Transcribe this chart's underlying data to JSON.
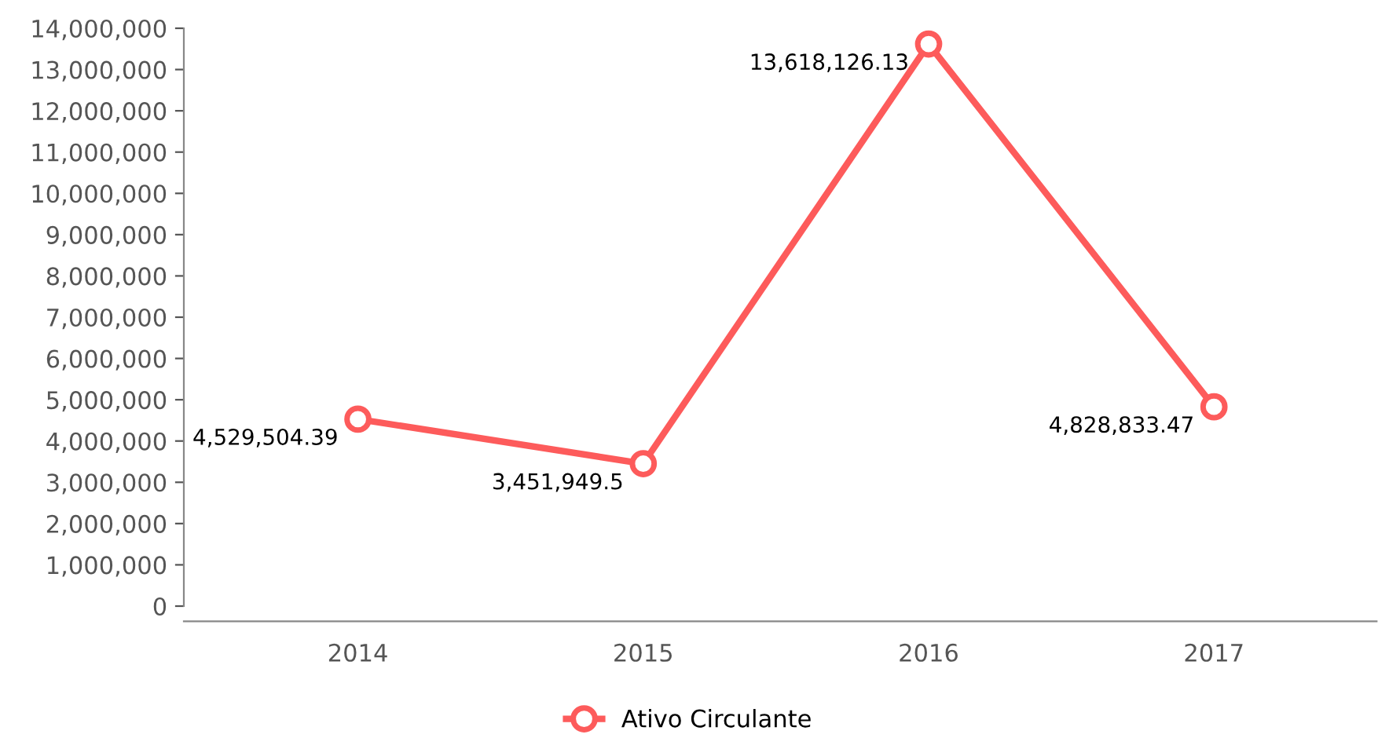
{
  "chart_data": {
    "type": "line",
    "categories": [
      "2014",
      "2015",
      "2016",
      "2017"
    ],
    "series": [
      {
        "name": "Ativo Circulante",
        "color": "#fd5b5b",
        "values": [
          4529504.39,
          3451949.5,
          13618126.13,
          4828833.47
        ],
        "value_labels": [
          "4,529,504.39",
          "3,451,949.5",
          "13,618,126.13",
          "4,828,833.47"
        ]
      }
    ],
    "ylim": [
      0,
      14000000
    ],
    "yticks": [
      {
        "value": 0,
        "label": "0"
      },
      {
        "value": 1000000,
        "label": "1,000,000"
      },
      {
        "value": 2000000,
        "label": "2,000,000"
      },
      {
        "value": 3000000,
        "label": "3,000,000"
      },
      {
        "value": 4000000,
        "label": "4,000,000"
      },
      {
        "value": 5000000,
        "label": "5,000,000"
      },
      {
        "value": 6000000,
        "label": "6,000,000"
      },
      {
        "value": 7000000,
        "label": "7,000,000"
      },
      {
        "value": 8000000,
        "label": "8,000,000"
      },
      {
        "value": 9000000,
        "label": "9,000,000"
      },
      {
        "value": 10000000,
        "label": "10,000,000"
      },
      {
        "value": 11000000,
        "label": "11,000,000"
      },
      {
        "value": 12000000,
        "label": "12,000,000"
      },
      {
        "value": 13000000,
        "label": "13,000,000"
      },
      {
        "value": 14000000,
        "label": "14,000,000"
      }
    ],
    "marker": "circle",
    "line_style": "solid",
    "legend": "bottom",
    "grid": false
  }
}
